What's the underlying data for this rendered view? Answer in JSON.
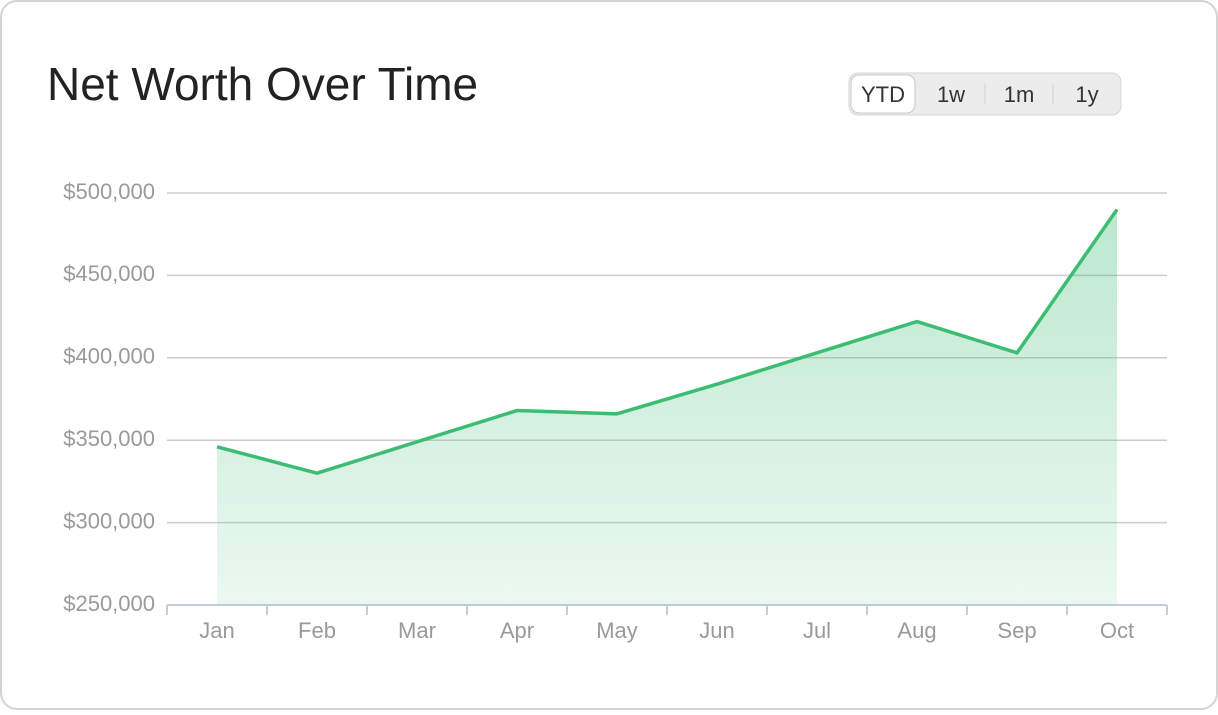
{
  "chart_data": {
    "type": "line",
    "title": "Net Worth Over Time",
    "range_buttons": [
      "YTD",
      "1w",
      "1m",
      "1y"
    ],
    "selected_button": 0,
    "categories": [
      "Jan",
      "Feb",
      "Mar",
      "Apr",
      "May",
      "Jun",
      "Jul",
      "Aug",
      "Sep",
      "Oct"
    ],
    "values": [
      346000,
      330000,
      349000,
      368000,
      366000,
      384000,
      403000,
      422000,
      403000,
      490000
    ],
    "color": "#3dbd74",
    "ylim": [
      250000,
      500000
    ],
    "yticks": [
      {
        "value": 250000,
        "label": "$250,000"
      },
      {
        "value": 300000,
        "label": "$300,000"
      },
      {
        "value": 350000,
        "label": "$350,000"
      },
      {
        "value": 400000,
        "label": "$400,000"
      },
      {
        "value": 450000,
        "label": "$450,000"
      },
      {
        "value": 500000,
        "label": "$500,000"
      }
    ],
    "grid": true
  }
}
